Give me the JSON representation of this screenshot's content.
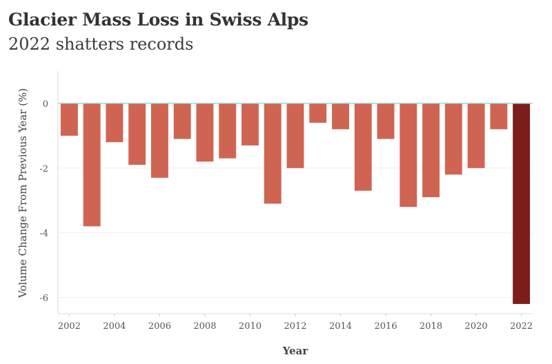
{
  "chart_data": {
    "type": "bar",
    "title": "Glacier Mass Loss in Swiss Alps",
    "subtitle": "2022 shatters records",
    "xlabel": "Year",
    "ylabel": "Volume Change From Previous Year (%)",
    "categories": [
      "2002",
      "2003",
      "2004",
      "2005",
      "2006",
      "2007",
      "2008",
      "2009",
      "2010",
      "2011",
      "2012",
      "2013",
      "2014",
      "2015",
      "2016",
      "2017",
      "2018",
      "2019",
      "2020",
      "2021",
      "2022"
    ],
    "values": [
      -1.0,
      -3.8,
      -1.2,
      -1.9,
      -2.3,
      -1.1,
      -1.8,
      -1.7,
      -1.3,
      -3.1,
      -2.0,
      -0.6,
      -0.8,
      -2.7,
      -1.1,
      -3.2,
      -2.9,
      -2.2,
      -2.0,
      -0.8,
      -6.2
    ],
    "highlight": "2022",
    "xticks": [
      "2002",
      "2004",
      "2006",
      "2008",
      "2010",
      "2012",
      "2014",
      "2016",
      "2018",
      "2020",
      "2022"
    ],
    "yticks": [
      0,
      -2,
      -4,
      -6
    ],
    "ylim": [
      -6.5,
      1.0
    ],
    "colors": {
      "bar": "#d06452",
      "highlight": "#7b1e1a",
      "zero_line": "#a8d4dc"
    }
  }
}
